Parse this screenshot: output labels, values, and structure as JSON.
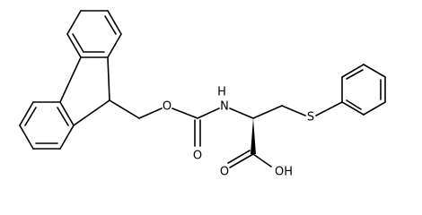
{
  "atoms": [
    "O",
    "O",
    "H",
    "N",
    "S",
    "O",
    "OH"
  ]
}
